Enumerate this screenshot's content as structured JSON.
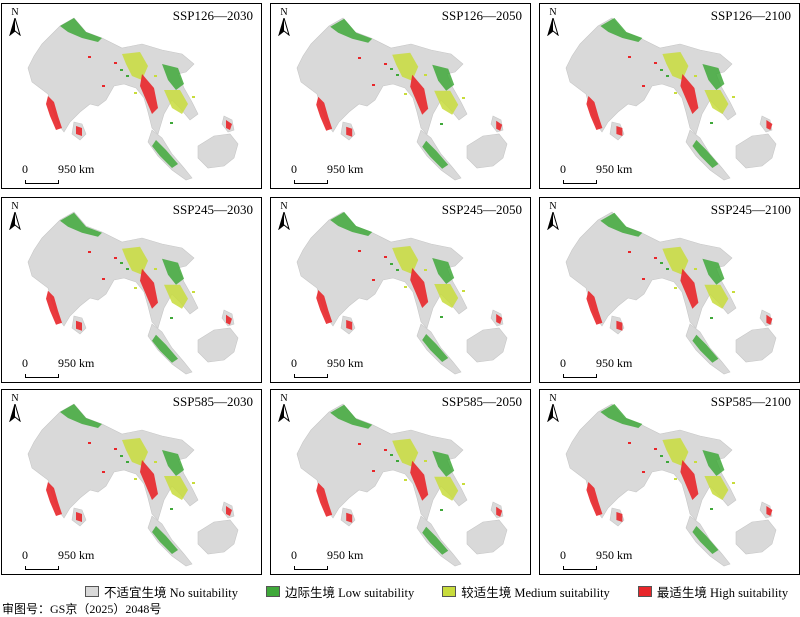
{
  "panels": [
    {
      "title": "SSP126—2030",
      "north": "N",
      "scale_zero": "0",
      "scale_dist": "950 km"
    },
    {
      "title": "SSP126—2050",
      "north": "N",
      "scale_zero": "0",
      "scale_dist": "950 km"
    },
    {
      "title": "SSP126—2100",
      "north": "N",
      "scale_zero": "0",
      "scale_dist": "950 km"
    },
    {
      "title": "SSP245—2030",
      "north": "N",
      "scale_zero": "0",
      "scale_dist": "950 km"
    },
    {
      "title": "SSP245—2050",
      "north": "N",
      "scale_zero": "0",
      "scale_dist": "950 km"
    },
    {
      "title": "SSP245—2100",
      "north": "N",
      "scale_zero": "0",
      "scale_dist": "950 km"
    },
    {
      "title": "SSP585—2030",
      "north": "N",
      "scale_zero": "0",
      "scale_dist": "950 km"
    },
    {
      "title": "SSP585—2050",
      "north": "N",
      "scale_zero": "0",
      "scale_dist": "950 km"
    },
    {
      "title": "SSP585—2100",
      "north": "N",
      "scale_zero": "0",
      "scale_dist": "950 km"
    }
  ],
  "legend": [
    {
      "label": "不适宜生境 No suitability",
      "color": "#d9d9d9"
    },
    {
      "label": "边际生境 Low suitability",
      "color": "#3fa83a"
    },
    {
      "label": "较适生境 Medium suitability",
      "color": "#c8dc3c"
    },
    {
      "label": "最适生境 High suitability",
      "color": "#e8262a"
    }
  ],
  "approval": "审图号：GS京（2025）2048号",
  "colors": {
    "land": "#d9d9d9",
    "low": "#3fa83a",
    "medium": "#c8dc3c",
    "high": "#e8262a"
  }
}
